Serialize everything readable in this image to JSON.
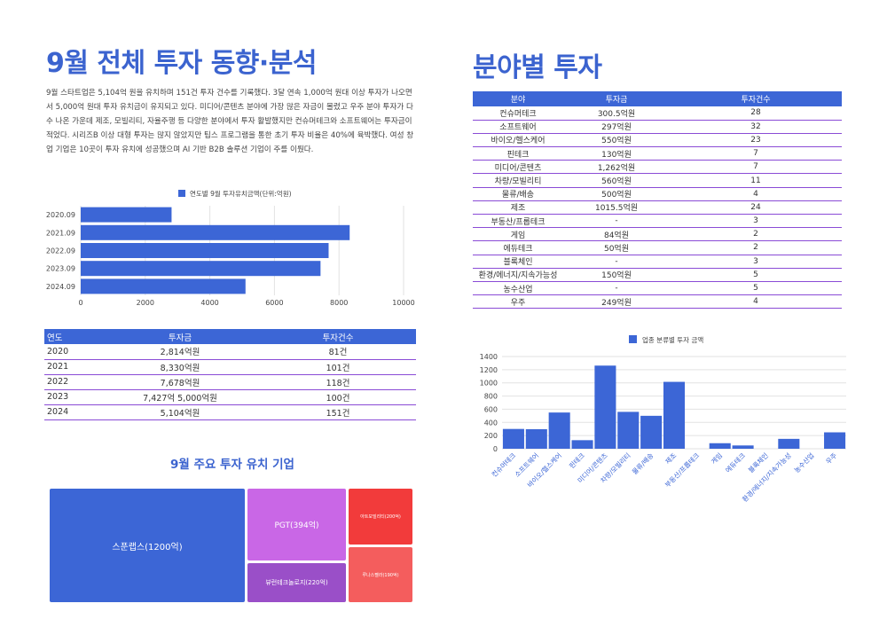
{
  "left": {
    "title": "9월 전체 투자 동향·분석",
    "paragraph": "9월 스타트업은 5,104억 원을 유치하며 151건 투자 건수를 기록했다. 3달 연속 1,000억 원대 이상 투자가 나오면서 5,000억 원대 투자 유치금이 유지되고 있다. 미디어/콘텐츠 분야에 가장 많은 자금이 몰렸고 우주 분야 투자가 다수 나온 가운데 제조, 모빌리티, 자율주행 등 다양한 분야에서 투자 활발했지만 컨슈머테크와 소프트웨어는 투자금이 적었다. 시리즈B 이상 대형 투자는 많지 않았지만 팁스 프로그램을 통한 초기 투자 비율은 40%에 육박했다. 여성 창업 기업은 10곳이 투자 유치에 성공했으며 AI 기반 B2B 솔루션 기업이 주를 이뤘다.",
    "table_header": {
      "year": "연도",
      "amount": "투자금",
      "count": "투자건수"
    },
    "table_rows": [
      {
        "year": "2020",
        "amount": "2,814억원",
        "count": "81건"
      },
      {
        "year": "2021",
        "amount": "8,330억원",
        "count": "101건"
      },
      {
        "year": "2022",
        "amount": "7,678억원",
        "count": "118건"
      },
      {
        "year": "2023",
        "amount": "7,427억 5,000억원",
        "count": "100건"
      },
      {
        "year": "2024",
        "amount": "5,104억원",
        "count": "151건"
      }
    ],
    "treemap_title": "9월 주요 투자 유치 기업",
    "treemap": [
      {
        "label": "스푼랩스(1200억)",
        "value": 1200,
        "color": "#3c66d6"
      },
      {
        "label": "PGT(394억)",
        "value": 394,
        "color": "#c967e6"
      },
      {
        "label": "뷰런테크놀로지(220억)",
        "value": 220,
        "color": "#9a4fc8"
      },
      {
        "label": "아트모빌리티(200억)",
        "value": 200,
        "color": "#f23b3b"
      },
      {
        "label": "루나스펠라(190억)",
        "value": 190,
        "color": "#f45d5d"
      }
    ]
  },
  "right": {
    "title": "분야별 투자",
    "table_header": {
      "field": "분야",
      "amount": "투자금",
      "count": "투자건수"
    },
    "table_rows": [
      {
        "field": "컨슈머테크",
        "amount": "300.5억원",
        "count": "28"
      },
      {
        "field": "소프트웨어",
        "amount": "297억원",
        "count": "32"
      },
      {
        "field": "바이오/헬스케어",
        "amount": "550억원",
        "count": "23"
      },
      {
        "field": "핀테크",
        "amount": "130억원",
        "count": "7"
      },
      {
        "field": "미디어/콘텐츠",
        "amount": "1,262억원",
        "count": "7"
      },
      {
        "field": "차량/모빌리티",
        "amount": "560억원",
        "count": "11"
      },
      {
        "field": "물류/배송",
        "amount": "500억원",
        "count": "4"
      },
      {
        "field": "제조",
        "amount": "1015.5억원",
        "count": "24"
      },
      {
        "field": "부동산/프롭테크",
        "amount": "-",
        "count": "3"
      },
      {
        "field": "게임",
        "amount": "84억원",
        "count": "2"
      },
      {
        "field": "에듀테크",
        "amount": "50억원",
        "count": "2"
      },
      {
        "field": "블록체인",
        "amount": "-",
        "count": "3"
      },
      {
        "field": "환경/에너지/지속가능성",
        "amount": "150억원",
        "count": "5"
      },
      {
        "field": "농수산업",
        "amount": "-",
        "count": "5"
      },
      {
        "field": "우주",
        "amount": "249억원",
        "count": "4"
      }
    ]
  },
  "chart_data": [
    {
      "type": "bar",
      "orientation": "horizontal",
      "legend": "연도별 9월 투자유치금액(단위:억원)",
      "legend_position": "top",
      "categories": [
        "2020.09",
        "2021.09",
        "2022.09",
        "2023.09",
        "2024.09"
      ],
      "values": [
        2814,
        8330,
        7678,
        7427.5,
        5104
      ],
      "xlim": [
        0,
        10000
      ],
      "xticks": [
        "0",
        "2000",
        "4000",
        "6000",
        "8000",
        "10000"
      ],
      "color": "#3c66d6",
      "grid": true
    },
    {
      "type": "bar",
      "legend": "업종 분류별 투자 금액",
      "legend_position": "top",
      "categories": [
        "컨슈머테크",
        "소프트웨어",
        "바이오/헬스케어",
        "핀테크",
        "미디어/콘텐츠",
        "차량/모빌리티",
        "물류/배송",
        "제조",
        "부동산/프롭테크",
        "게임",
        "에듀테크",
        "블록체인",
        "환경/에너지/지속가능성",
        "농수산업",
        "우주"
      ],
      "values": [
        300.5,
        297,
        550,
        130,
        1262,
        560,
        500,
        1015.5,
        0,
        84,
        50,
        0,
        150,
        0,
        249
      ],
      "ylim": [
        0,
        1400
      ],
      "yticks": [
        "0",
        "200",
        "400",
        "600",
        "800",
        "1000",
        "1200",
        "1400"
      ],
      "color": "#3c66d6",
      "grid": true
    }
  ]
}
